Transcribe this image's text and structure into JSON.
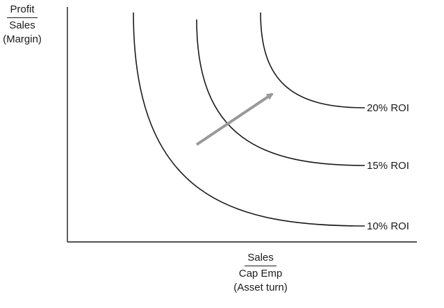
{
  "chart_data": {
    "type": "line",
    "title": "",
    "xlabel": {
      "numerator": "Sales",
      "denominator": "Cap Emp",
      "note": "(Asset turn)"
    },
    "ylabel": {
      "numerator": "Profit",
      "denominator": "Sales",
      "note": "(Margin)"
    },
    "grid": false,
    "legend": "none",
    "series": [
      {
        "name": "10% ROI",
        "roi": 0.1
      },
      {
        "name": "15% ROI",
        "roi": 0.15
      },
      {
        "name": "20% ROI",
        "roi": 0.2
      }
    ],
    "annotations": [
      {
        "type": "arrow",
        "meaning": "direction of increasing ROI",
        "color": "#999999"
      }
    ],
    "colors": {
      "curves": "#1a1a1a",
      "arrow": "#999999"
    }
  }
}
